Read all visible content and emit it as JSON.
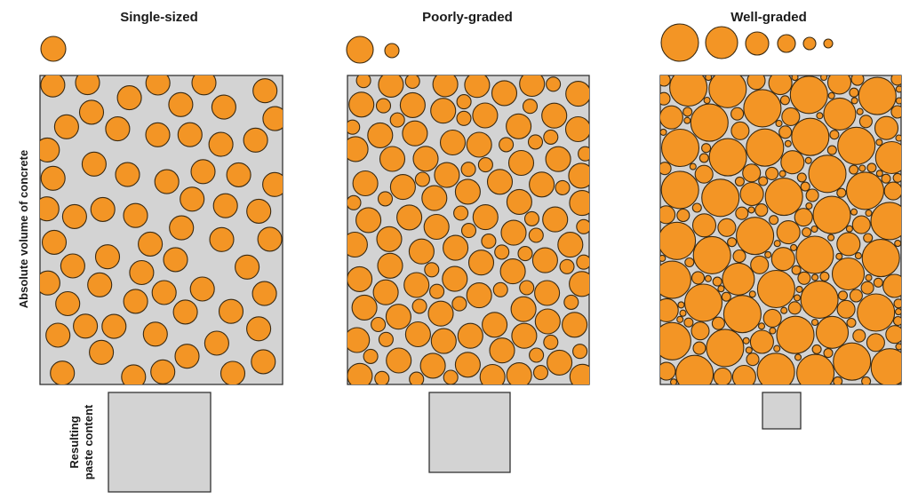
{
  "colors": {
    "aggregate": "#f39525",
    "aggregate_outline": "#3a2a12",
    "paste": "#d3d3d3",
    "box_outline": "#333333",
    "text": "#1a1a1a"
  },
  "y_axis_label": "Absolute volume of concrete",
  "paste_label": [
    "Resulting",
    "paste content"
  ],
  "panels": [
    {
      "id": "single-sized",
      "title": "Single-sized",
      "sizes": [
        "large"
      ]
    },
    {
      "id": "poorly-graded",
      "title": "Poorly-graded",
      "sizes": [
        "large",
        "small"
      ]
    },
    {
      "id": "well-graded",
      "title": "Well-graded",
      "sizes": [
        "xl",
        "large",
        "medium",
        "small",
        "tiny",
        "micro"
      ]
    }
  ]
}
